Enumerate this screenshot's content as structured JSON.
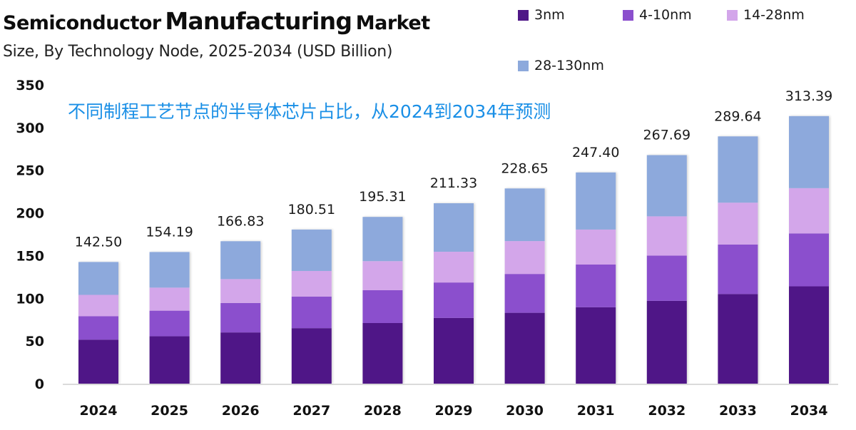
{
  "header": {
    "title_part1": "Semiconductor",
    "title_part2": "Manufacturing",
    "title_part3": "Market",
    "subtitle": "Size, By Technology Node, 2025-2034 (USD Billion)"
  },
  "annotation": "不同制程工艺节点的半导体芯片占比，从2024到2034年预测",
  "chart_data": {
    "type": "bar",
    "stacked": true,
    "title": "Semiconductor Manufacturing Market",
    "subtitle": "Size, By Technology Node, 2025-2034 (USD Billion)",
    "xlabel": "",
    "ylabel": "",
    "ylim": [
      0,
      350
    ],
    "yticks": [
      0,
      50,
      100,
      150,
      200,
      250,
      300,
      350
    ],
    "grid": false,
    "legend_position": "top-right",
    "categories": [
      "2024",
      "2025",
      "2026",
      "2027",
      "2028",
      "2029",
      "2030",
      "2031",
      "2032",
      "2033",
      "2034"
    ],
    "totals": [
      "142.50",
      "154.19",
      "166.83",
      "180.51",
      "195.31",
      "211.33",
      "228.65",
      "247.40",
      "267.69",
      "289.64",
      "313.39"
    ],
    "series": [
      {
        "name": "3nm",
        "color": "#4f1787",
        "values": [
          51.5,
          55.5,
          60,
          65,
          71,
          77,
          83,
          89.5,
          97,
          105,
          114
        ]
      },
      {
        "name": "4-10nm",
        "color": "#8b4fcd",
        "values": [
          27.5,
          30,
          34.5,
          37,
          38.5,
          41.5,
          45.5,
          50,
          53,
          58,
          62
        ]
      },
      {
        "name": "14-28nm",
        "color": "#d3a6ea",
        "values": [
          25,
          27,
          28,
          30,
          34,
          36,
          38.5,
          41,
          46,
          49,
          53
        ]
      },
      {
        "name": "28-130nm",
        "color": "#8da9dc",
        "values": [
          38.5,
          41.69,
          44.33,
          48.51,
          51.81,
          56.83,
          61.65,
          66.9,
          71.69,
          77.64,
          84.39
        ]
      }
    ]
  }
}
